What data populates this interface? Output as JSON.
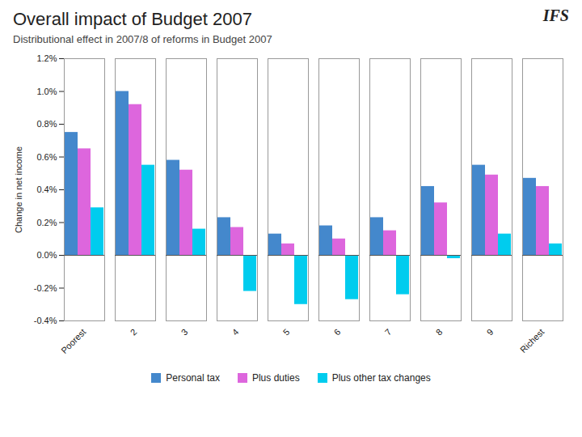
{
  "chart_data": {
    "type": "bar",
    "title": "Overall impact of Budget 2007",
    "subtitle": "Distributional effect in 2007/8 of reforms in Budget 2007",
    "ylabel": "Change in net income",
    "annotations": [
      "IFS"
    ],
    "categories": [
      "Poorest",
      "2",
      "3",
      "4",
      "5",
      "6",
      "7",
      "8",
      "9",
      "Richest"
    ],
    "series": [
      {
        "name": "Personal tax",
        "color": "#4488cc",
        "values": [
          0.75,
          1.0,
          0.58,
          0.23,
          0.13,
          0.18,
          0.23,
          0.42,
          0.55,
          0.47
        ]
      },
      {
        "name": "Plus duties",
        "color": "#dd66dd",
        "values": [
          0.65,
          0.92,
          0.52,
          0.17,
          0.07,
          0.1,
          0.15,
          0.32,
          0.49,
          0.42
        ]
      },
      {
        "name": "Plus other tax changes",
        "color": "#00ccee",
        "values": [
          0.29,
          0.55,
          0.16,
          -0.22,
          -0.3,
          -0.27,
          -0.24,
          -0.02,
          0.13,
          0.07
        ]
      }
    ],
    "ylim": [
      -0.4,
      1.2
    ],
    "yticks": [
      {
        "value": -0.4,
        "label": "-0.4%"
      },
      {
        "value": -0.2,
        "label": "-0.2%"
      },
      {
        "value": 0,
        "label": "0.0%"
      },
      {
        "value": 0.2,
        "label": "0.2%"
      },
      {
        "value": 0.4,
        "label": "0.4%"
      },
      {
        "value": 0.6,
        "label": "0.6%"
      },
      {
        "value": 0.8,
        "label": "0.8%"
      },
      {
        "value": 1.0,
        "label": "1.0%"
      },
      {
        "value": 1.2,
        "label": "1.2%"
      }
    ],
    "grid": false,
    "legend": "bottom"
  }
}
